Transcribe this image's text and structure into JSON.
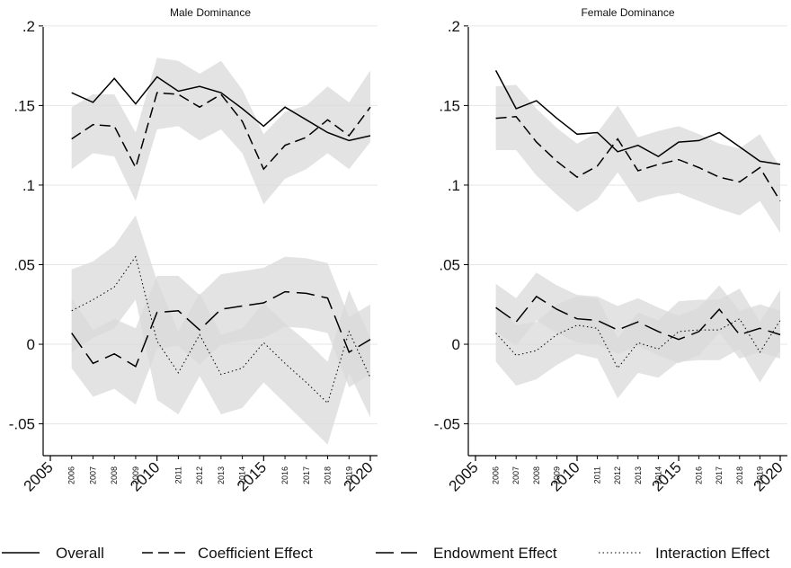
{
  "chart_data": [
    {
      "type": "line",
      "title": "Male Dominance",
      "xlabel": "",
      "ylabel": "",
      "ylim": [
        -0.07,
        0.205
      ],
      "xlim": [
        2005,
        2020
      ],
      "x_major_ticks": [
        "2005",
        "2010",
        "2015",
        "2020"
      ],
      "x_minor_ticks": [
        "2006",
        "2007",
        "2008",
        "2009",
        "2011",
        "2012",
        "2013",
        "2014",
        "2016",
        "2017",
        "2018",
        "2019"
      ],
      "y_ticks": [
        ".2",
        ".15",
        ".1",
        ".05",
        "0",
        "-.05"
      ],
      "grid": true,
      "years": [
        2006,
        2007,
        2008,
        2009,
        2010,
        2011,
        2012,
        2013,
        2014,
        2015,
        2016,
        2017,
        2018,
        2019,
        2020
      ],
      "series": [
        {
          "name": "Overall",
          "dash": "solid",
          "values": [
            0.158,
            0.152,
            0.167,
            0.151,
            0.168,
            0.159,
            0.162,
            0.158,
            0.148,
            0.137,
            0.149,
            0.141,
            0.133,
            0.128,
            0.131
          ]
        },
        {
          "name": "Coefficient Effect",
          "dash": "dash",
          "values": [
            0.129,
            0.138,
            0.137,
            0.111,
            0.158,
            0.157,
            0.149,
            0.157,
            0.14,
            0.11,
            0.125,
            0.13,
            0.141,
            0.131,
            0.149
          ],
          "ci_low": [
            0.11,
            0.12,
            0.118,
            0.09,
            0.135,
            0.137,
            0.128,
            0.135,
            0.12,
            0.088,
            0.104,
            0.11,
            0.12,
            0.11,
            0.127
          ],
          "ci_high": [
            0.149,
            0.157,
            0.157,
            0.133,
            0.18,
            0.178,
            0.17,
            0.178,
            0.16,
            0.132,
            0.146,
            0.15,
            0.162,
            0.152,
            0.172
          ]
        },
        {
          "name": "Endowment Effect",
          "dash": "longdash",
          "values": [
            0.007,
            -0.012,
            -0.006,
            -0.014,
            0.02,
            0.021,
            0.009,
            0.022,
            0.024,
            0.026,
            0.033,
            0.032,
            0.029,
            -0.005,
            0.003
          ],
          "ci_low": [
            -0.015,
            -0.033,
            -0.028,
            -0.038,
            -0.003,
            -0.001,
            -0.013,
            0.0,
            0.002,
            0.004,
            0.011,
            0.01,
            0.007,
            -0.027,
            -0.019
          ],
          "ci_high": [
            0.029,
            0.009,
            0.016,
            0.01,
            0.043,
            0.043,
            0.031,
            0.044,
            0.046,
            0.048,
            0.055,
            0.054,
            0.051,
            0.017,
            0.025
          ]
        },
        {
          "name": "Interaction Effect",
          "dash": "dot",
          "values": [
            0.021,
            0.028,
            0.036,
            0.055,
            0.002,
            -0.018,
            0.006,
            -0.019,
            -0.015,
            0.001,
            -0.012,
            -0.024,
            -0.037,
            0.008,
            -0.021
          ],
          "ci_low": [
            -0.005,
            0.004,
            0.01,
            0.028,
            -0.035,
            -0.044,
            -0.02,
            -0.044,
            -0.04,
            -0.024,
            -0.037,
            -0.05,
            -0.063,
            -0.018,
            -0.046
          ],
          "ci_high": [
            0.047,
            0.052,
            0.062,
            0.081,
            0.04,
            0.008,
            0.032,
            0.006,
            0.01,
            0.026,
            0.013,
            0.002,
            -0.011,
            0.034,
            0.004
          ]
        }
      ]
    },
    {
      "type": "line",
      "title": "Female Dominance",
      "xlabel": "",
      "ylabel": "",
      "ylim": [
        -0.07,
        0.205
      ],
      "xlim": [
        2005,
        2020
      ],
      "x_major_ticks": [
        "2005",
        "2010",
        "2015",
        "2020"
      ],
      "x_minor_ticks": [
        "2006",
        "2007",
        "2008",
        "2009",
        "2011",
        "2012",
        "2013",
        "2014",
        "2016",
        "2017",
        "2018",
        "2019"
      ],
      "y_ticks": [
        ".2",
        ".15",
        ".1",
        ".05",
        "0",
        "-.05"
      ],
      "grid": true,
      "years": [
        2006,
        2007,
        2008,
        2009,
        2010,
        2011,
        2012,
        2013,
        2014,
        2015,
        2016,
        2017,
        2018,
        2019,
        2020
      ],
      "series": [
        {
          "name": "Overall",
          "dash": "solid",
          "values": [
            0.172,
            0.148,
            0.153,
            0.142,
            0.132,
            0.133,
            0.121,
            0.125,
            0.118,
            0.127,
            0.128,
            0.133,
            0.124,
            0.115,
            0.113
          ]
        },
        {
          "name": "Coefficient Effect",
          "dash": "dash",
          "values": [
            0.142,
            0.143,
            0.127,
            0.115,
            0.105,
            0.112,
            0.129,
            0.109,
            0.113,
            0.116,
            0.111,
            0.105,
            0.102,
            0.111,
            0.09
          ],
          "ci_low": [
            0.122,
            0.122,
            0.106,
            0.094,
            0.083,
            0.091,
            0.108,
            0.089,
            0.093,
            0.095,
            0.09,
            0.085,
            0.081,
            0.09,
            0.07
          ],
          "ci_high": [
            0.162,
            0.163,
            0.148,
            0.136,
            0.126,
            0.133,
            0.15,
            0.13,
            0.134,
            0.137,
            0.132,
            0.126,
            0.123,
            0.132,
            0.111
          ]
        },
        {
          "name": "Endowment Effect",
          "dash": "longdash",
          "values": [
            0.023,
            0.014,
            0.03,
            0.022,
            0.016,
            0.015,
            0.009,
            0.014,
            0.008,
            0.003,
            0.008,
            0.022,
            0.006,
            0.01,
            0.006
          ],
          "ci_low": [
            0.008,
            -0.001,
            0.015,
            0.007,
            0.001,
            0.0,
            -0.006,
            -0.001,
            -0.007,
            -0.012,
            -0.007,
            0.007,
            -0.009,
            -0.005,
            -0.009
          ],
          "ci_high": [
            0.038,
            0.029,
            0.045,
            0.037,
            0.031,
            0.03,
            0.024,
            0.029,
            0.023,
            0.018,
            0.023,
            0.037,
            0.021,
            0.025,
            0.021
          ]
        },
        {
          "name": "Interaction Effect",
          "dash": "dot",
          "values": [
            0.007,
            -0.007,
            -0.004,
            0.006,
            0.012,
            0.01,
            -0.015,
            0.001,
            -0.003,
            0.008,
            0.009,
            0.009,
            0.016,
            -0.005,
            0.015
          ],
          "ci_low": [
            -0.011,
            -0.026,
            -0.022,
            -0.013,
            -0.006,
            -0.009,
            -0.034,
            -0.018,
            -0.021,
            -0.011,
            -0.01,
            -0.01,
            -0.003,
            -0.024,
            -0.004
          ],
          "ci_high": [
            0.025,
            0.012,
            0.014,
            0.025,
            0.03,
            0.029,
            0.004,
            0.02,
            0.015,
            0.027,
            0.028,
            0.028,
            0.035,
            0.014,
            0.034
          ]
        }
      ]
    }
  ],
  "legend": {
    "placement": "bottom",
    "items": [
      {
        "label": "Overall",
        "dash": "solid"
      },
      {
        "label": "Coefficient Effect",
        "dash": "dash"
      },
      {
        "label": "Endowment Effect",
        "dash": "longdash"
      },
      {
        "label": "Interaction Effect",
        "dash": "dot"
      }
    ]
  },
  "colors": {
    "line": "#000000",
    "ci_band": "#d9d9d9",
    "grid": "#e6e6e6"
  }
}
